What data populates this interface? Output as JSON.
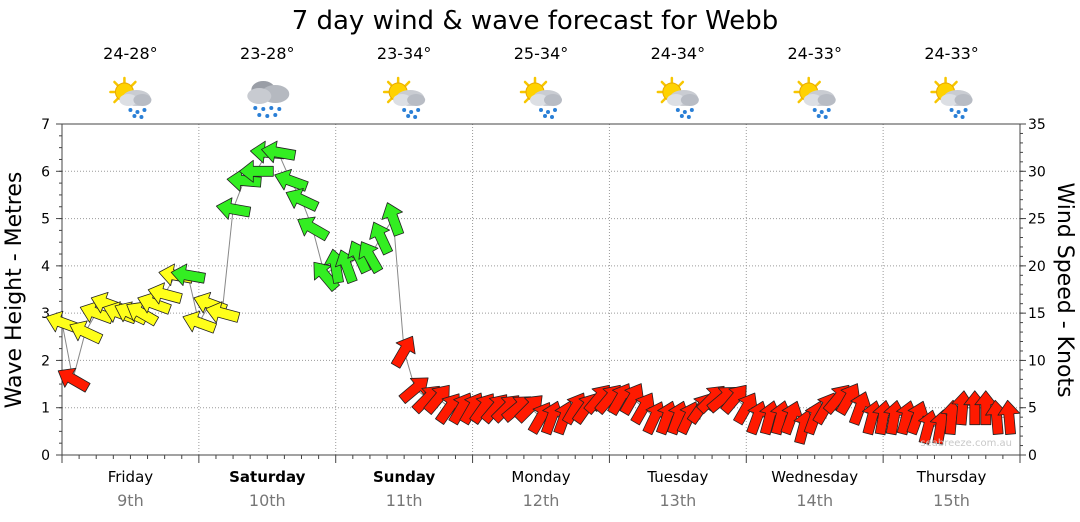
{
  "chart_data": {
    "type": "line",
    "title": "7 day wind & wave forecast for Webb",
    "ylabel": "Wave Height - Metres",
    "y2label": "Wind Speed - Knots",
    "ylim": [
      0,
      7
    ],
    "y2lim": [
      0,
      35
    ],
    "yticks": [
      0,
      1,
      2,
      3,
      4,
      5,
      6,
      7
    ],
    "y2ticks": [
      0,
      5,
      10,
      15,
      20,
      25,
      30,
      35
    ],
    "grid": true,
    "days": [
      {
        "day": "Friday",
        "date": "9th",
        "bold": false,
        "temp": "24-28°",
        "icon": "partly-sunny-showers-icon"
      },
      {
        "day": "Saturday",
        "date": "10th",
        "bold": true,
        "temp": "23-28°",
        "icon": "rain-cloud-icon"
      },
      {
        "day": "Sunday",
        "date": "11th",
        "bold": true,
        "temp": "23-34°",
        "icon": "partly-sunny-showers-icon"
      },
      {
        "day": "Monday",
        "date": "12th",
        "bold": false,
        "temp": "25-34°",
        "icon": "partly-sunny-showers-icon"
      },
      {
        "day": "Tuesday",
        "date": "13th",
        "bold": false,
        "temp": "24-34°",
        "icon": "partly-sunny-showers-icon"
      },
      {
        "day": "Wednesday",
        "date": "14th",
        "bold": false,
        "temp": "24-33°",
        "icon": "partly-sunny-showers-icon"
      },
      {
        "day": "Thursday",
        "date": "15th",
        "bold": false,
        "temp": "24-33°",
        "icon": "partly-sunny-showers-icon"
      }
    ],
    "series": [
      {
        "name": "Wind",
        "x_unit": "days from start of Friday 9th",
        "x": [
          0.0,
          0.08,
          0.17,
          0.25,
          0.33,
          0.42,
          0.5,
          0.58,
          0.67,
          0.75,
          0.83,
          0.92,
          1.0,
          1.08,
          1.17,
          1.25,
          1.33,
          1.42,
          1.5,
          1.58,
          1.67,
          1.75,
          1.83,
          1.92,
          2.0,
          2.08,
          2.17,
          2.25,
          2.33,
          2.42,
          2.5,
          2.58,
          2.67,
          2.75,
          2.83,
          2.92,
          3.0,
          3.08,
          3.17,
          3.25,
          3.33,
          3.42,
          3.5,
          3.58,
          3.67,
          3.75,
          3.83,
          3.92,
          4.0,
          4.08,
          4.17,
          4.25,
          4.33,
          4.42,
          4.5,
          4.58,
          4.67,
          4.75,
          4.83,
          4.92,
          5.0,
          5.08,
          5.17,
          5.25,
          5.33,
          5.42,
          5.5,
          5.58,
          5.67,
          5.75,
          5.83,
          5.92,
          6.0,
          6.08,
          6.17,
          6.25,
          6.33,
          6.42,
          6.5,
          6.58,
          6.67,
          6.75,
          6.83,
          6.92
        ],
        "knots": [
          14,
          8,
          13,
          15,
          16,
          15,
          15,
          15,
          16,
          17,
          19,
          19,
          14,
          16,
          15,
          26,
          29,
          30,
          32,
          32,
          29,
          27,
          24,
          19,
          20,
          20,
          21,
          21,
          23,
          25,
          11,
          7,
          6,
          6,
          5,
          5,
          5,
          5,
          5,
          5,
          5,
          5,
          4,
          4,
          4,
          5,
          5,
          6,
          6,
          6,
          6,
          5,
          4,
          4,
          4,
          4,
          5,
          6,
          6,
          6,
          5,
          4,
          4,
          4,
          4,
          3,
          4,
          5,
          6,
          6,
          5,
          4,
          4,
          4,
          4,
          4,
          3,
          3,
          4,
          5,
          5,
          5,
          4,
          4
        ],
        "direction_deg": [
          200,
          210,
          205,
          200,
          200,
          200,
          205,
          210,
          200,
          195,
          190,
          190,
          200,
          200,
          195,
          190,
          185,
          180,
          185,
          190,
          200,
          205,
          210,
          230,
          260,
          250,
          245,
          240,
          245,
          250,
          300,
          320,
          315,
          310,
          305,
          300,
          300,
          305,
          310,
          315,
          320,
          315,
          300,
          290,
          290,
          300,
          305,
          310,
          310,
          300,
          300,
          300,
          295,
          290,
          290,
          295,
          305,
          315,
          320,
          310,
          300,
          290,
          285,
          285,
          290,
          285,
          290,
          300,
          310,
          300,
          290,
          285,
          280,
          280,
          285,
          290,
          285,
          280,
          275,
          275,
          270,
          270,
          265,
          265
        ]
      }
    ]
  },
  "watermark": "seabreeze.com.au"
}
